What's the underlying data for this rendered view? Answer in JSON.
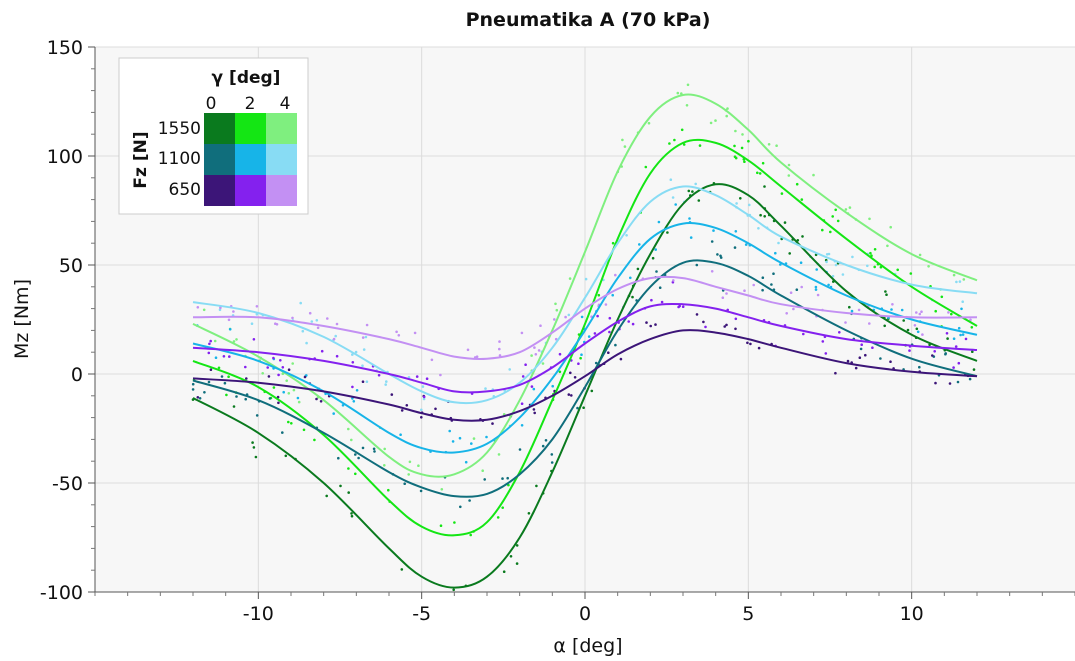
{
  "chart_data": {
    "type": "scatter",
    "title": "Pneumatika A (70 kPa)",
    "xlabel": "α [deg]",
    "ylabel": "Mz [Nm]",
    "xlim": [
      -15,
      15
    ],
    "ylim": [
      -100,
      150
    ],
    "xticks": [
      -10,
      -5,
      0,
      5,
      10
    ],
    "xtick_labels": [
      "-10",
      "-5",
      "0",
      "5",
      "10"
    ],
    "yticks": [
      -100,
      -50,
      0,
      50,
      100,
      150
    ],
    "ytick_labels": [
      "-100",
      "-50",
      "0",
      "50",
      "100",
      "150"
    ],
    "grid": true,
    "background": "#f7f7f7",
    "legend": {
      "placement": "top-left",
      "gamma_title": "γ [deg]",
      "gamma_values": [
        "0",
        "2",
        "4"
      ],
      "fz_title": "Fz [N]",
      "fz_values": [
        "1550",
        "1100",
        "650"
      ]
    },
    "series": [
      {
        "fz": 1550,
        "gamma": 0,
        "color": "#0a7a1e",
        "x": [
          -12,
          -10,
          -8,
          -6,
          -5,
          -4,
          -3,
          -2,
          -1,
          0,
          1,
          2,
          3,
          4,
          5,
          6,
          8,
          10,
          12
        ],
        "y": [
          -11,
          -27,
          -50,
          -80,
          -93,
          -98,
          -93,
          -75,
          -45,
          -10,
          25,
          55,
          78,
          87,
          82,
          68,
          38,
          18,
          6
        ]
      },
      {
        "fz": 1550,
        "gamma": 2,
        "color": "#14e614",
        "x": [
          -12,
          -10,
          -8,
          -6,
          -5,
          -4,
          -3,
          -2,
          -1,
          0,
          1,
          2,
          3,
          4,
          5,
          6,
          8,
          10,
          12
        ],
        "y": [
          6,
          -6,
          -28,
          -58,
          -70,
          -74,
          -68,
          -45,
          -12,
          23,
          62,
          92,
          106,
          106,
          98,
          86,
          62,
          40,
          22
        ]
      },
      {
        "fz": 1550,
        "gamma": 4,
        "color": "#7fef7f",
        "x": [
          -12,
          -10,
          -8,
          -6,
          -5,
          -4,
          -3,
          -2,
          -1,
          0,
          1,
          2,
          3,
          4,
          5,
          6,
          8,
          10,
          12
        ],
        "y": [
          23,
          8,
          -12,
          -38,
          -46,
          -46,
          -36,
          -12,
          20,
          56,
          93,
          118,
          128,
          124,
          112,
          97,
          74,
          55,
          43
        ]
      },
      {
        "fz": 1100,
        "gamma": 0,
        "color": "#106e7c",
        "x": [
          -12,
          -10,
          -8,
          -6,
          -5,
          -4,
          -3,
          -2,
          -1,
          0,
          1,
          2,
          3,
          4,
          5,
          6,
          8,
          10,
          12
        ],
        "y": [
          -3,
          -12,
          -27,
          -45,
          -52,
          -56,
          -55,
          -46,
          -30,
          -6,
          20,
          40,
          51,
          51,
          45,
          36,
          20,
          7,
          -1
        ]
      },
      {
        "fz": 1100,
        "gamma": 2,
        "color": "#17b4e8",
        "x": [
          -12,
          -10,
          -8,
          -6,
          -5,
          -4,
          -3,
          -2,
          -1,
          0,
          1,
          2,
          3,
          4,
          5,
          6,
          8,
          10,
          12
        ],
        "y": [
          14,
          6,
          -8,
          -27,
          -34,
          -36,
          -32,
          -20,
          -2,
          20,
          44,
          62,
          69,
          67,
          60,
          51,
          36,
          25,
          18
        ]
      },
      {
        "fz": 1100,
        "gamma": 4,
        "color": "#88dcf4",
        "x": [
          -12,
          -10,
          -8,
          -6,
          -5,
          -4,
          -3,
          -2,
          -1,
          0,
          1,
          2,
          3,
          4,
          5,
          6,
          8,
          10,
          12
        ],
        "y": [
          33,
          28,
          17,
          0,
          -8,
          -13,
          -12,
          -4,
          12,
          35,
          60,
          79,
          86,
          82,
          73,
          63,
          50,
          41,
          37
        ]
      },
      {
        "fz": 650,
        "gamma": 0,
        "color": "#3c1578",
        "x": [
          -12,
          -10,
          -8,
          -6,
          -5,
          -4,
          -3,
          -2,
          -1,
          0,
          1,
          2,
          3,
          4,
          5,
          6,
          8,
          10,
          12
        ],
        "y": [
          -2,
          -4,
          -8,
          -14,
          -18,
          -21,
          -21,
          -17,
          -10,
          -1,
          9,
          16,
          20,
          19,
          16,
          12,
          5,
          1,
          -1
        ]
      },
      {
        "fz": 650,
        "gamma": 2,
        "color": "#8421ee",
        "x": [
          -12,
          -10,
          -8,
          -6,
          -5,
          -4,
          -3,
          -2,
          -1,
          0,
          1,
          2,
          3,
          4,
          5,
          6,
          8,
          10,
          12
        ],
        "y": [
          12,
          10,
          6,
          0,
          -4,
          -8,
          -8,
          -5,
          3,
          14,
          24,
          31,
          32,
          30,
          26,
          22,
          16,
          13,
          11
        ]
      },
      {
        "fz": 650,
        "gamma": 4,
        "color": "#c390f3",
        "x": [
          -12,
          -10,
          -8,
          -6,
          -5,
          -4,
          -3,
          -2,
          -1,
          0,
          1,
          2,
          3,
          4,
          5,
          6,
          8,
          10,
          12
        ],
        "y": [
          26,
          26,
          22,
          16,
          12,
          8,
          7,
          10,
          19,
          30,
          39,
          44,
          44,
          40,
          36,
          32,
          28,
          26,
          26
        ]
      }
    ]
  }
}
